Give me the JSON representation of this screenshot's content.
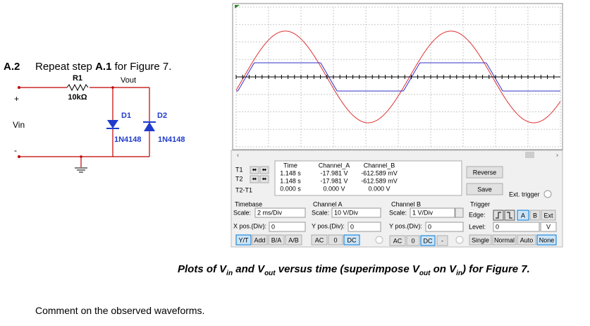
{
  "step": {
    "number": "A.2",
    "text_before": "Repeat step ",
    "ref": "A.1",
    "text_after": " for Figure 7."
  },
  "circuit": {
    "r1": "R1",
    "r1_value": "10kΩ",
    "vout": "Vout",
    "plus": "+",
    "minus": "-",
    "vin": "Vin",
    "d1": "D1",
    "d2": "D2",
    "d1_part": "1N4148",
    "d2_part": "1N4148"
  },
  "scope": {
    "cursor_rows": [
      "T1",
      "T2",
      "T2-T1"
    ],
    "readout": {
      "headers": [
        "Time",
        "Channel_A",
        "Channel_B"
      ],
      "rows": [
        [
          "1.148 s",
          "-17.981 V",
          "-612.589 mV"
        ],
        [
          "1.148 s",
          "-17.981 V",
          "-612.589 mV"
        ],
        [
          "0.000 s",
          "0.000 V",
          "0.000 V"
        ]
      ]
    },
    "buttons": {
      "reverse": "Reverse",
      "save": "Save",
      "ext_trigger": "Ext. trigger"
    },
    "timebase": {
      "title": "Timebase",
      "scale_label": "Scale:",
      "scale": "2 ms/Div",
      "xpos_label": "X pos.(Div):",
      "xpos": "0",
      "modes": [
        "Y/T",
        "Add",
        "B/A",
        "A/B"
      ]
    },
    "channel_a": {
      "title": "Channel A",
      "scale_label": "Scale:",
      "scale": "10 V/Div",
      "ypos_label": "Y pos.(Div):",
      "ypos": "0",
      "coupling": [
        "AC",
        "0",
        "DC"
      ]
    },
    "channel_b": {
      "title": "Channel B",
      "scale_label": "Scale:",
      "scale": "1 V/Div",
      "ypos_label": "Y pos.(Div):",
      "ypos": "0",
      "coupling": [
        "AC",
        "0",
        "DC",
        "-"
      ]
    },
    "trigger": {
      "title": "Trigger",
      "edge_label": "Edge:",
      "sources": [
        "A",
        "B",
        "Ext"
      ],
      "level_label": "Level:",
      "level": "0",
      "level_unit": "V",
      "modes": [
        "Single",
        "Normal",
        "Auto",
        "None"
      ]
    }
  },
  "caption": [
    "Plots of V",
    "in",
    " and V",
    "out",
    " versus time (superimpose V",
    "out",
    " on V",
    "in",
    ") for Figure 7."
  ],
  "comment": "Comment on the observed waveforms."
}
